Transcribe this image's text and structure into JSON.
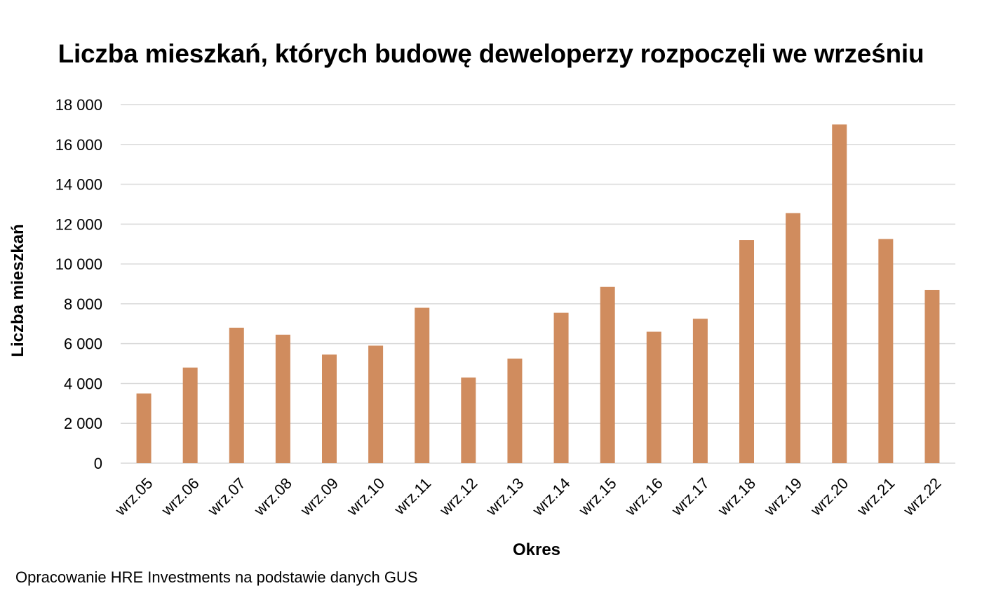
{
  "chart_data": {
    "type": "bar",
    "title": "Liczba mieszkań, których budowę deweloperzy rozpoczęli we wrześniu",
    "xlabel": "Okres",
    "ylabel": "Liczba mieszkań",
    "categories": [
      "wrz.05",
      "wrz.06",
      "wrz.07",
      "wrz.08",
      "wrz.09",
      "wrz.10",
      "wrz.11",
      "wrz.12",
      "wrz.13",
      "wrz.14",
      "wrz.15",
      "wrz.16",
      "wrz.17",
      "wrz.18",
      "wrz.19",
      "wrz.20",
      "wrz.21",
      "wrz.22"
    ],
    "values": [
      3500,
      4800,
      6800,
      6450,
      5450,
      5900,
      7800,
      4300,
      5250,
      7550,
      8850,
      6600,
      7250,
      11200,
      12550,
      17000,
      11250,
      8700
    ],
    "ylim": [
      0,
      18000
    ],
    "yticks": [
      0,
      2000,
      4000,
      6000,
      8000,
      10000,
      12000,
      14000,
      16000,
      18000
    ],
    "ytick_labels": [
      "0",
      "2 000",
      "4 000",
      "6 000",
      "8 000",
      "10 000",
      "12 000",
      "14 000",
      "16 000",
      "18 000"
    ],
    "grid": true,
    "bar_color": "#d08c5e",
    "grid_color": "#d9d9d9"
  },
  "source": "Opracowanie HRE Investments na podstawie danych GUS"
}
